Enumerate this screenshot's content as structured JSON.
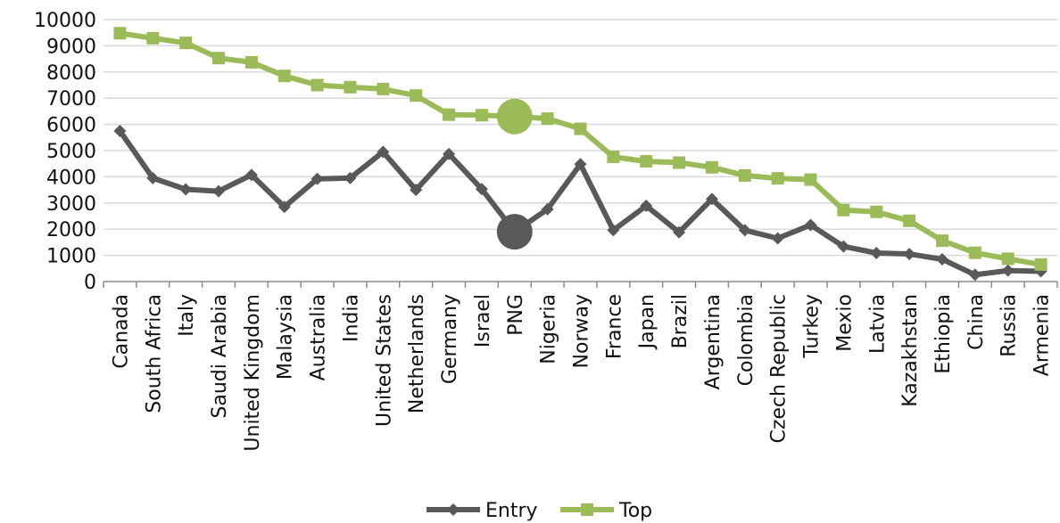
{
  "chart_data": {
    "type": "line",
    "title": "",
    "xlabel": "",
    "ylabel": "",
    "ylim": [
      0,
      10000
    ],
    "yticks": [
      0,
      1000,
      2000,
      3000,
      4000,
      5000,
      6000,
      7000,
      8000,
      9000,
      10000
    ],
    "grid": true,
    "legend_position": "bottom",
    "categories": [
      "Canada",
      "South Africa",
      "Italy",
      "Saudi Arabia",
      "United Kingdom",
      "Malaysia",
      "Australia",
      "India",
      "United States",
      "Netherlands",
      "Germany",
      "Israel",
      "PNG",
      "Nigeria",
      "Norway",
      "France",
      "Japan",
      "Brazil",
      "Argentina",
      "Colombia",
      "Czech Republic",
      "Turkey",
      "Mexio",
      "Latvia",
      "Kazakhstan",
      "Ethiopia",
      "China",
      "Russia",
      "Armenia"
    ],
    "series": [
      {
        "name": "Entry",
        "color": "#595959",
        "marker": "diamond",
        "values": [
          5750,
          3950,
          3520,
          3450,
          4070,
          2850,
          3920,
          3950,
          4950,
          3500,
          4870,
          3530,
          1900,
          2760,
          4480,
          1960,
          2890,
          1880,
          3150,
          1960,
          1650,
          2160,
          1340,
          1090,
          1050,
          850,
          260,
          420,
          390
        ]
      },
      {
        "name": "Top",
        "color": "#9bbb59",
        "marker": "square",
        "values": [
          9480,
          9290,
          9110,
          8530,
          8370,
          7850,
          7500,
          7420,
          7350,
          7100,
          6370,
          6350,
          6300,
          6220,
          5830,
          4760,
          4590,
          4540,
          4360,
          4050,
          3940,
          3890,
          2730,
          2660,
          2320,
          1560,
          1100,
          870,
          650
        ]
      }
    ],
    "highlight": {
      "category": "PNG",
      "series_values": {
        "Entry": 1900,
        "Top": 6300
      }
    }
  }
}
